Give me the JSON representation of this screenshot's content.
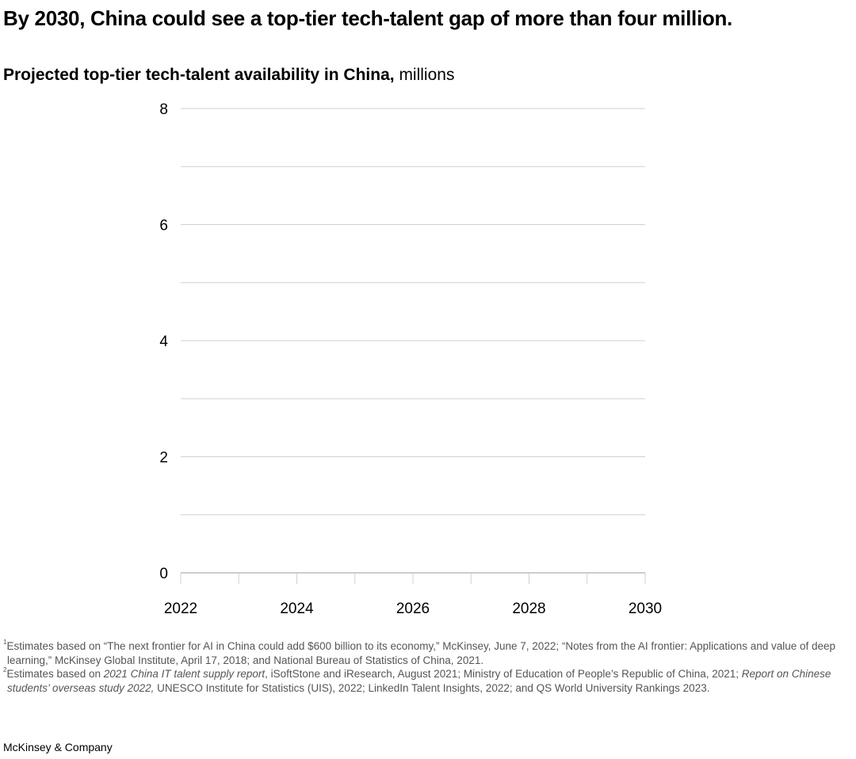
{
  "title": "By 2030, China could see a top-tier tech-talent gap of more than four million.",
  "subtitle": {
    "bold": "Projected top-tier tech-talent availability in China,",
    "unit": "millions"
  },
  "chart_data": {
    "type": "line",
    "title": "Projected top-tier tech-talent availability in China",
    "ylabel": "millions",
    "xlim": [
      2022,
      2030
    ],
    "ylim": [
      0,
      8
    ],
    "x_ticks": [
      2022,
      2024,
      2026,
      2028,
      2030
    ],
    "y_ticks": [
      0,
      2,
      4,
      6,
      8
    ],
    "grid": true,
    "series": []
  },
  "colors": {
    "grid": "#d0d0d0",
    "axis": "#999999",
    "notes": "#555555"
  },
  "footnotes": [
    {
      "marker": "1",
      "parts": [
        {
          "text": "Estimates based on “The next frontier for AI in China could add $600 billion to its economy,” McKinsey, June 7, 2022; “Notes from the AI frontier: Applications and value of deep learning,” McKinsey Global Institute, April 17, 2018; and National Bureau of Statistics of China, 2021.",
          "italic": false
        }
      ]
    },
    {
      "marker": "2",
      "parts": [
        {
          "text": "Estimates based on ",
          "italic": false
        },
        {
          "text": "2021 China IT talent supply report",
          "italic": true
        },
        {
          "text": ", iSoftStone and iResearch, August 2021; Ministry of Education of People’s Republic of China, 2021; ",
          "italic": false
        },
        {
          "text": "Report on Chinese students’ overseas study 2022,",
          "italic": true
        },
        {
          "text": " UNESCO Institute for Statistics (UIS), 2022; LinkedIn Talent Insights, 2022; and QS World University Rankings 2023.",
          "italic": false
        }
      ]
    }
  ],
  "brand": "McKinsey & Company"
}
